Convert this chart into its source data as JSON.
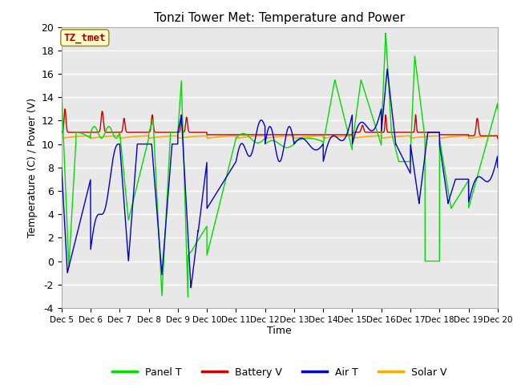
{
  "title": "Tonzi Tower Met: Temperature and Power",
  "xlabel": "Time",
  "ylabel": "Temperature (C) / Power (V)",
  "ylim": [
    -4,
    20
  ],
  "background_color": "#ffffff",
  "plot_bg_color": "#e8e8e8",
  "grid_color": "#ffffff",
  "annotation_label": "TZ_tmet",
  "annotation_box_color": "#ffffcc",
  "annotation_border_color": "#aaaaaa",
  "legend_labels": [
    "Panel T",
    "Battery V",
    "Air T",
    "Solar V"
  ],
  "line_colors": {
    "panel": "#00dd00",
    "battery": "#cc0000",
    "air": "#0000cc",
    "solar": "#ffaa00"
  },
  "xtick_labels": [
    "Dec 5",
    "Dec 6",
    "Dec 7",
    "Dec 8",
    "Dec 9",
    "Dec 10",
    "Dec 11",
    "Dec 12",
    "Dec 13",
    "Dec 14",
    "Dec 15",
    "Dec 16",
    "Dec 17",
    "Dec 18",
    "Dec 19",
    "Dec 20"
  ],
  "ytick_vals": [
    -4,
    -2,
    0,
    2,
    4,
    6,
    8,
    10,
    12,
    14,
    16,
    18,
    20
  ]
}
